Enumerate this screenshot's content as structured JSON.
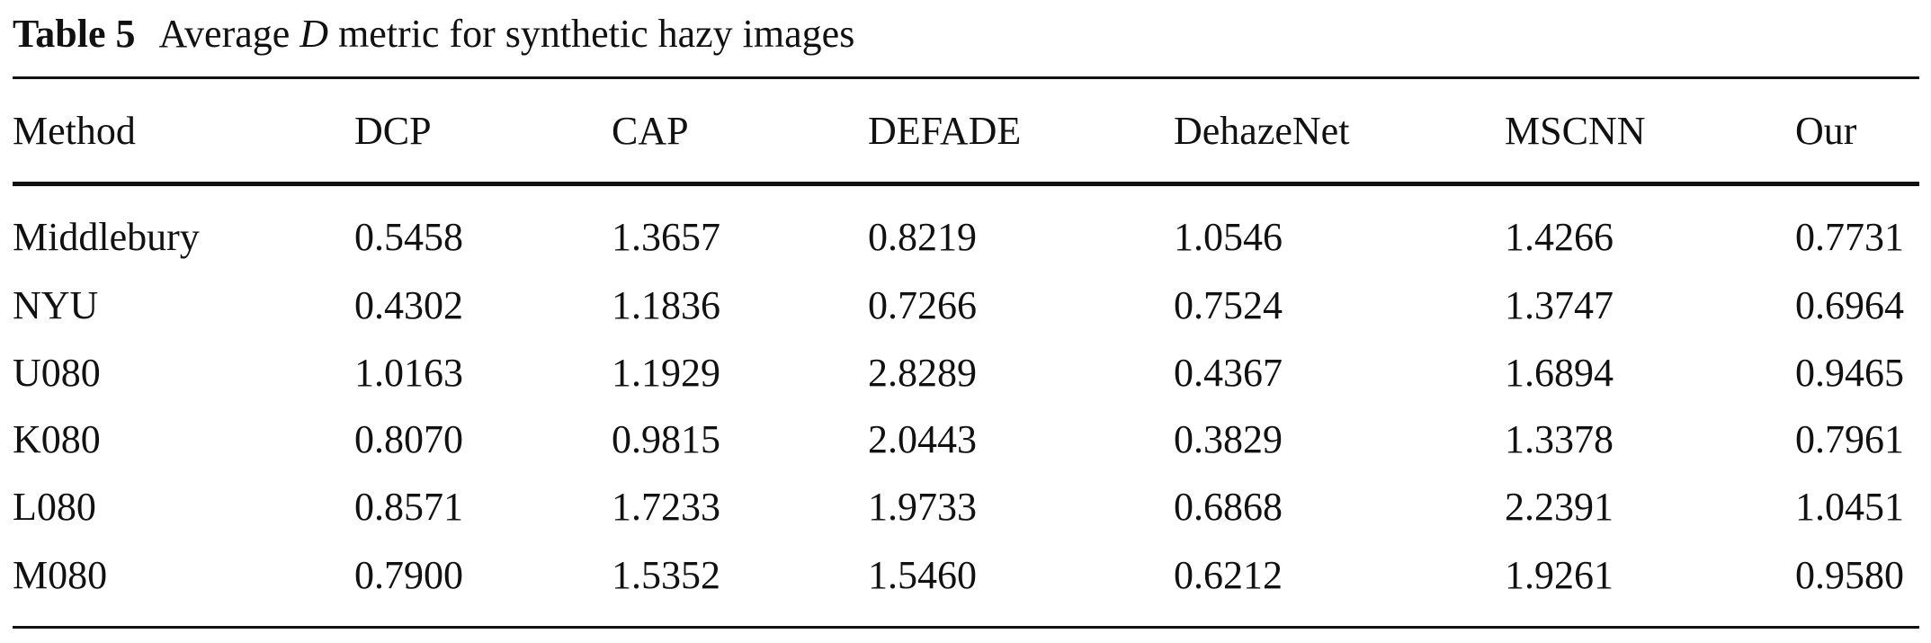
{
  "caption": {
    "label": "Table 5",
    "text_before": "Average",
    "symbol": "D",
    "text_after": "metric for synthetic hazy images"
  },
  "table": {
    "header": [
      "Method",
      "DCP",
      "CAP",
      "DEFADE",
      "DehazeNet",
      "MSCNN",
      "Our"
    ],
    "rows": [
      [
        "Middlebury",
        "0.5458",
        "1.3657",
        "0.8219",
        "1.0546",
        "1.4266",
        "0.7731"
      ],
      [
        "NYU",
        "0.4302",
        "1.1836",
        "0.7266",
        "0.7524",
        "1.3747",
        "0.6964"
      ],
      [
        "U080",
        "1.0163",
        "1.1929",
        "2.8289",
        "0.4367",
        "1.6894",
        "0.9465"
      ],
      [
        "K080",
        "0.8070",
        "0.9815",
        "2.0443",
        "0.3829",
        "1.3378",
        "0.7961"
      ],
      [
        "L080",
        "0.8571",
        "1.7233",
        "1.9733",
        "0.6868",
        "2.2391",
        "1.0451"
      ],
      [
        "M080",
        "0.7900",
        "1.5352",
        "1.5460",
        "0.6212",
        "1.9261",
        "0.9580"
      ]
    ]
  }
}
